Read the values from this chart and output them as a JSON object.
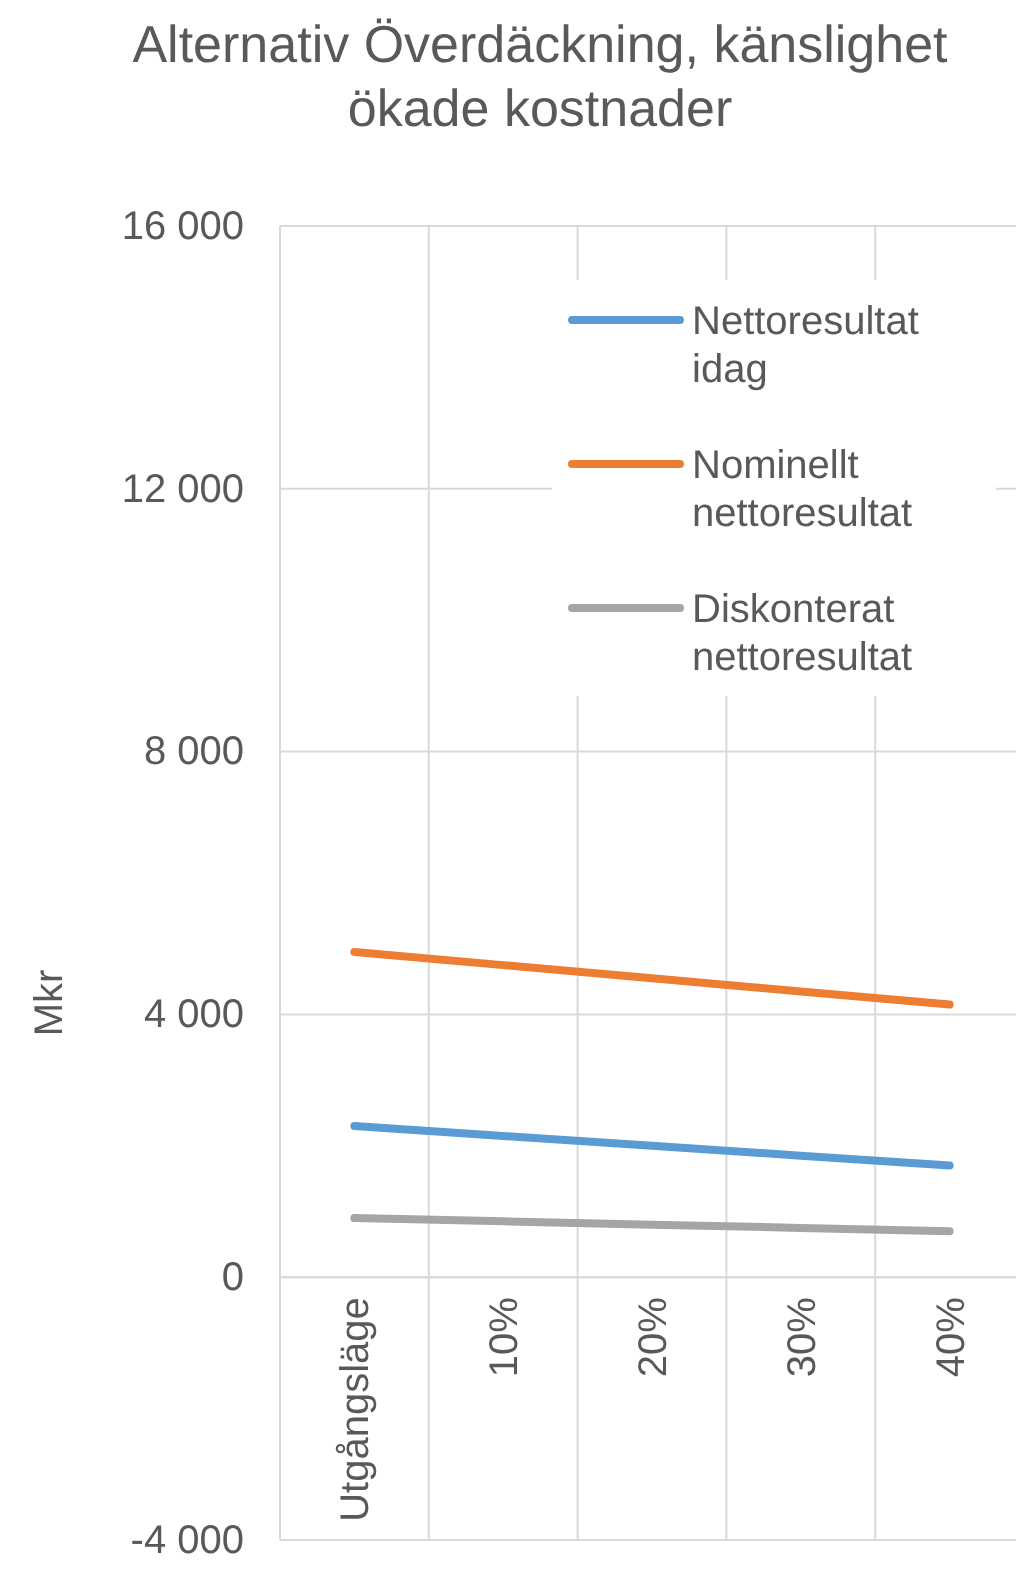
{
  "chart_data": {
    "type": "line",
    "title": "Alternativ Överdäckning, känslighet ökade kostnader",
    "ylabel": "Mkr",
    "categories": [
      "Utgångsläge",
      "10%",
      "20%",
      "30%",
      "40%"
    ],
    "series": [
      {
        "name": "Nettoresultat idag",
        "color": "#5b9bd5",
        "values": [
          2300,
          2150,
          2000,
          1850,
          1700
        ]
      },
      {
        "name": "Nominellt nettoresultat",
        "color": "#ed7d31",
        "values": [
          4950,
          4750,
          4550,
          4350,
          4150
        ]
      },
      {
        "name": "Diskonterat nettoresultat",
        "color": "#a5a5a5",
        "values": [
          900,
          850,
          800,
          750,
          700
        ]
      }
    ],
    "ylim": [
      -4000,
      16000
    ],
    "yticks": [
      {
        "value": -4000,
        "label": "-4 000"
      },
      {
        "value": 0,
        "label": "0"
      },
      {
        "value": 4000,
        "label": "4 000"
      },
      {
        "value": 8000,
        "label": "8 000"
      },
      {
        "value": 12000,
        "label": "12 000"
      },
      {
        "value": 16000,
        "label": "16 000"
      }
    ],
    "grid": true,
    "legend": "top right",
    "marker": "none",
    "line_style": "solid"
  }
}
